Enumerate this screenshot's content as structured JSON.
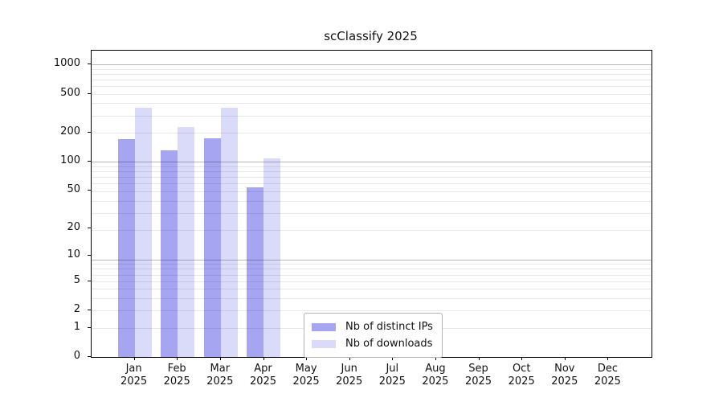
{
  "title": "scClassify 2025",
  "chart_data": {
    "type": "bar",
    "title": "scClassify 2025",
    "y_scale": "log10(value+1)",
    "ylim": [
      0,
      1380
    ],
    "grid": true,
    "legend_position": "lower-center-inside",
    "categories": [
      "Jan 2025",
      "Feb 2025",
      "Mar 2025",
      "Apr 2025",
      "May 2025",
      "Jun 2025",
      "Jul 2025",
      "Aug 2025",
      "Sep 2025",
      "Oct 2025",
      "Nov 2025",
      "Dec 2025"
    ],
    "series": [
      {
        "name": "Nb of distinct IPs",
        "color": "#a5a5f2",
        "values": [
          171,
          131,
          174,
          54,
          null,
          null,
          null,
          null,
          null,
          null,
          null,
          null
        ]
      },
      {
        "name": "Nb of downloads",
        "color": "#dadaf9",
        "values": [
          360,
          225,
          356,
          108,
          null,
          null,
          null,
          null,
          null,
          null,
          null,
          null
        ]
      }
    ],
    "y_ticks": [
      0,
      1,
      2,
      5,
      10,
      20,
      50,
      100,
      200,
      500,
      1000
    ]
  }
}
